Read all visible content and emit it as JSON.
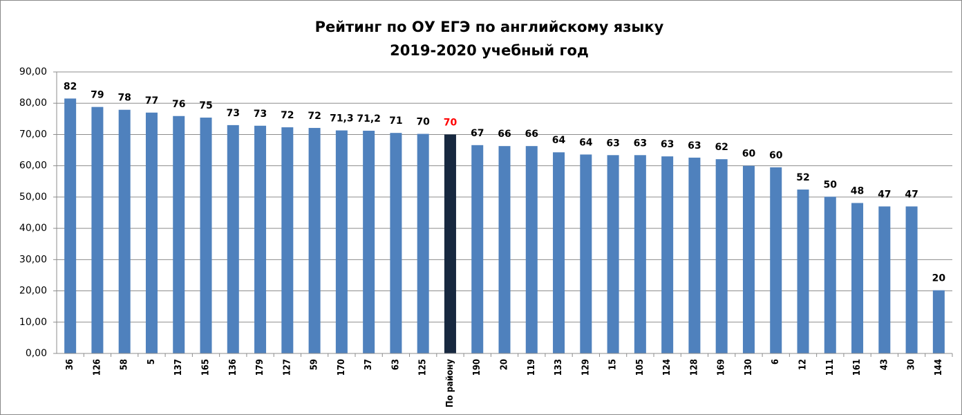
{
  "chart_data": {
    "type": "bar",
    "title": [
      "Рейтинг по ОУ  ЕГЭ по английскому языку",
      "2019-2020 учебный год"
    ],
    "categories": [
      "36",
      "126",
      "58",
      "5",
      "137",
      "165",
      "136",
      "179",
      "127",
      "59",
      "170",
      "37",
      "63",
      "125",
      "По району",
      "190",
      "20",
      "119",
      "133",
      "129",
      "15",
      "105",
      "124",
      "128",
      "169",
      "130",
      "6",
      "12",
      "111",
      "161",
      "43",
      "30",
      "144"
    ],
    "values": [
      81.5,
      78.8,
      77.9,
      77.0,
      75.9,
      75.4,
      73.0,
      72.8,
      72.3,
      72.1,
      71.3,
      71.2,
      70.5,
      70.2,
      70.0,
      66.6,
      66.3,
      66.3,
      64.3,
      63.6,
      63.4,
      63.4,
      63.0,
      62.6,
      62.1,
      60.0,
      59.5,
      52.4,
      50.1,
      48.1,
      47.0,
      47.0,
      20.2
    ],
    "value_labels": [
      "82",
      "79",
      "78",
      "77",
      "76",
      "75",
      "73",
      "73",
      "72",
      "72",
      "71,3",
      "71,2",
      "71",
      "70",
      "70",
      "67",
      "66",
      "66",
      "64",
      "64",
      "63",
      "63",
      "63",
      "63",
      "62",
      "60",
      "60",
      "52",
      "50",
      "48",
      "47",
      "47",
      "20"
    ],
    "colors": [
      "#4f81bd",
      "#4f81bd",
      "#4f81bd",
      "#4f81bd",
      "#4f81bd",
      "#4f81bd",
      "#4f81bd",
      "#4f81bd",
      "#4f81bd",
      "#4f81bd",
      "#4f81bd",
      "#4f81bd",
      "#4f81bd",
      "#4f81bd",
      "#17283f",
      "#4f81bd",
      "#4f81bd",
      "#4f81bd",
      "#4f81bd",
      "#4f81bd",
      "#4f81bd",
      "#4f81bd",
      "#4f81bd",
      "#4f81bd",
      "#4f81bd",
      "#4f81bd",
      "#4f81bd",
      "#4f81bd",
      "#4f81bd",
      "#4f81bd",
      "#4f81bd",
      "#4f81bd",
      "#4f81bd"
    ],
    "label_colors": [
      "#000",
      "#000",
      "#000",
      "#000",
      "#000",
      "#000",
      "#000",
      "#000",
      "#000",
      "#000",
      "#000",
      "#000",
      "#000",
      "#000",
      "#ff0000",
      "#000",
      "#000",
      "#000",
      "#000",
      "#000",
      "#000",
      "#000",
      "#000",
      "#000",
      "#000",
      "#000",
      "#000",
      "#000",
      "#000",
      "#000",
      "#000",
      "#000",
      "#000"
    ],
    "ylim": [
      0,
      90
    ],
    "yticks": [
      {
        "value": 0,
        "label": "0,00"
      },
      {
        "value": 10,
        "label": "10,00"
      },
      {
        "value": 20,
        "label": "20,00"
      },
      {
        "value": 30,
        "label": "30,00"
      },
      {
        "value": 40,
        "label": "40,00"
      },
      {
        "value": 50,
        "label": "50,00"
      },
      {
        "value": 60,
        "label": "60,00"
      },
      {
        "value": 70,
        "label": "70,00"
      },
      {
        "value": 80,
        "label": "80,00"
      },
      {
        "value": 90,
        "label": "90,00"
      }
    ],
    "grid": true
  }
}
